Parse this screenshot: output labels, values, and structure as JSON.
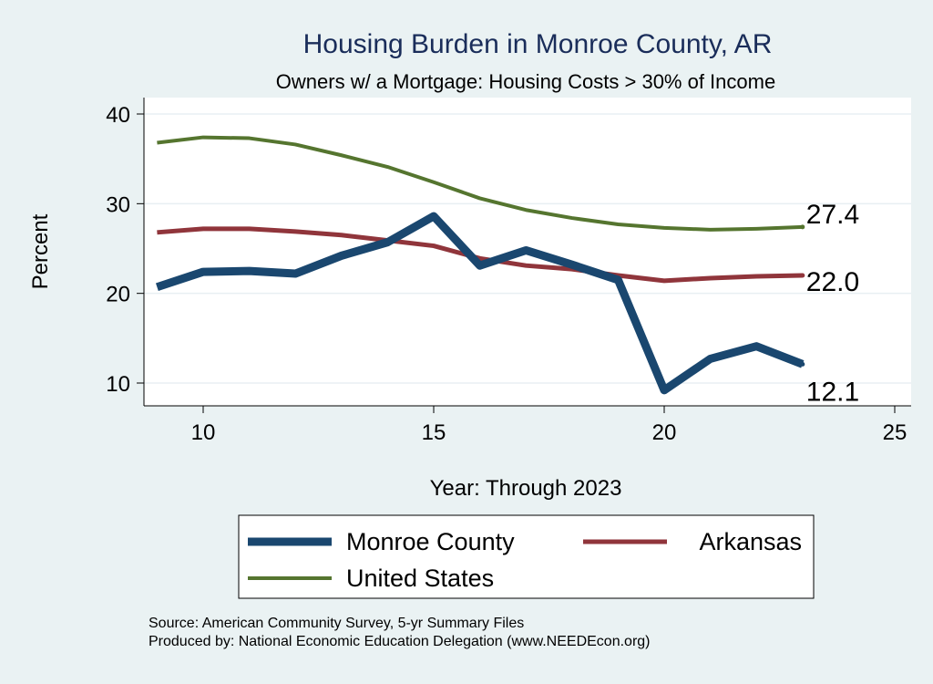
{
  "chart_data": {
    "type": "line",
    "title": "Housing Burden in Monroe County, AR",
    "subtitle": "Owners w/ a Mortgage: Housing Costs > 30% of Income",
    "xlabel": "Year: Through 2023",
    "ylabel": "Percent",
    "xlim": [
      8.7,
      25.4
    ],
    "ylim": [
      8,
      41.5
    ],
    "xticks": [
      10,
      15,
      20,
      25
    ],
    "yticks": [
      10,
      20,
      30,
      40
    ],
    "grid": true,
    "x": [
      9,
      10,
      11,
      12,
      13,
      14,
      15,
      16,
      17,
      18,
      19,
      20,
      21,
      22,
      23
    ],
    "series": [
      {
        "name": "Monroe County",
        "color": "#1a476f",
        "width": 9,
        "values": [
          20.7,
          22.4,
          22.5,
          22.2,
          24.2,
          25.7,
          28.6,
          23.1,
          24.8,
          23.2,
          21.5,
          9.2,
          12.7,
          14.1,
          12.1
        ],
        "end_label": "12.1"
      },
      {
        "name": "Arkansas",
        "color": "#90353b",
        "width": 5,
        "values": [
          26.8,
          27.2,
          27.2,
          26.9,
          26.5,
          25.9,
          25.3,
          23.9,
          23.1,
          22.7,
          22.0,
          21.4,
          21.7,
          21.9,
          22.0
        ],
        "end_label": "22.0"
      },
      {
        "name": "United States",
        "color": "#55752f",
        "width": 4,
        "values": [
          36.8,
          37.4,
          37.3,
          36.6,
          35.4,
          34.1,
          32.4,
          30.6,
          29.3,
          28.4,
          27.7,
          27.3,
          27.1,
          27.2,
          27.4
        ],
        "end_label": "27.4"
      }
    ],
    "legend_placement": "bottom"
  },
  "notes": {
    "source": "Source: American Community Survey, 5-yr Summary Files",
    "produced": "Produced by: National Economic Education Delegation (www.NEEDEcon.org)"
  }
}
